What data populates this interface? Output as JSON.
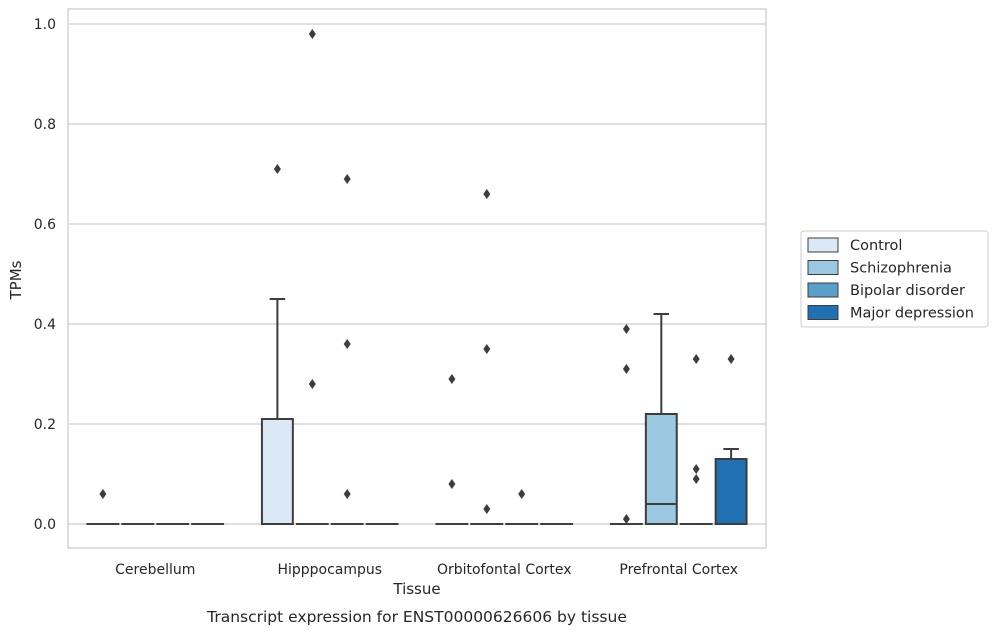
{
  "chart_data": {
    "type": "box",
    "title": "",
    "caption": "Transcript expression for ENST00000626606 by tissue",
    "xlabel": "Tissue",
    "ylabel": "TPMs",
    "ylim": [
      -0.045,
      1.03
    ],
    "yticks": [
      0.0,
      0.2,
      0.4,
      0.6,
      0.8,
      1.0
    ],
    "ytick_labels": [
      "0.0",
      "0.2",
      "0.4",
      "0.6",
      "0.8",
      "1.0"
    ],
    "grid": "horizontal",
    "legend_position": "right",
    "categories": [
      "Cerebellum",
      "Hipppocampus",
      "Orbitofontal Cortex",
      "Prefrontal Cortex"
    ],
    "series": [
      {
        "name": "Control",
        "color": "#dbe9f6",
        "boxes": [
          {
            "q1": 0,
            "median": 0,
            "q3": 0,
            "whisker_low": 0,
            "whisker_high": 0,
            "outliers": [
              0.06
            ]
          },
          {
            "q1": 0,
            "median": 0,
            "q3": 0.21,
            "whisker_low": 0,
            "whisker_high": 0.45,
            "outliers": [
              0.71
            ]
          },
          {
            "q1": 0,
            "median": 0,
            "q3": 0,
            "whisker_low": 0,
            "whisker_high": 0,
            "outliers": [
              0.08,
              0.29
            ]
          },
          {
            "q1": 0,
            "median": 0,
            "q3": 0,
            "whisker_low": 0,
            "whisker_high": 0,
            "outliers": [
              0.01,
              0.31,
              0.39
            ]
          }
        ]
      },
      {
        "name": "Schizophrenia",
        "color": "#9ac8e0",
        "boxes": [
          {
            "q1": 0,
            "median": 0,
            "q3": 0,
            "whisker_low": 0,
            "whisker_high": 0,
            "outliers": []
          },
          {
            "q1": 0,
            "median": 0,
            "q3": 0,
            "whisker_low": 0,
            "whisker_high": 0,
            "outliers": [
              0.28,
              0.98
            ]
          },
          {
            "q1": 0,
            "median": 0,
            "q3": 0,
            "whisker_low": 0,
            "whisker_high": 0,
            "outliers": [
              0.03,
              0.35,
              0.66
            ]
          },
          {
            "q1": 0,
            "median": 0.04,
            "q3": 0.22,
            "whisker_low": 0,
            "whisker_high": 0.42,
            "outliers": []
          }
        ]
      },
      {
        "name": "Bipolar disorder",
        "color": "#5a9fcc",
        "boxes": [
          {
            "q1": 0,
            "median": 0,
            "q3": 0,
            "whisker_low": 0,
            "whisker_high": 0,
            "outliers": []
          },
          {
            "q1": 0,
            "median": 0,
            "q3": 0,
            "whisker_low": 0,
            "whisker_high": 0,
            "outliers": [
              0.06,
              0.36,
              0.69
            ]
          },
          {
            "q1": 0,
            "median": 0,
            "q3": 0,
            "whisker_low": 0,
            "whisker_high": 0,
            "outliers": [
              0.06
            ]
          },
          {
            "q1": 0,
            "median": 0,
            "q3": 0,
            "whisker_low": 0,
            "whisker_high": 0,
            "outliers": [
              0.09,
              0.11,
              0.33
            ]
          }
        ]
      },
      {
        "name": "Major depression",
        "color": "#2070b4",
        "boxes": [
          {
            "q1": 0,
            "median": 0,
            "q3": 0,
            "whisker_low": 0,
            "whisker_high": 0,
            "outliers": []
          },
          {
            "q1": 0,
            "median": 0,
            "q3": 0,
            "whisker_low": 0,
            "whisker_high": 0,
            "outliers": []
          },
          {
            "q1": 0,
            "median": 0,
            "q3": 0,
            "whisker_low": 0,
            "whisker_high": 0,
            "outliers": []
          },
          {
            "q1": 0,
            "median": 0,
            "q3": 0.13,
            "whisker_low": 0,
            "whisker_high": 0.15,
            "outliers": [
              0.33
            ]
          }
        ]
      }
    ]
  }
}
